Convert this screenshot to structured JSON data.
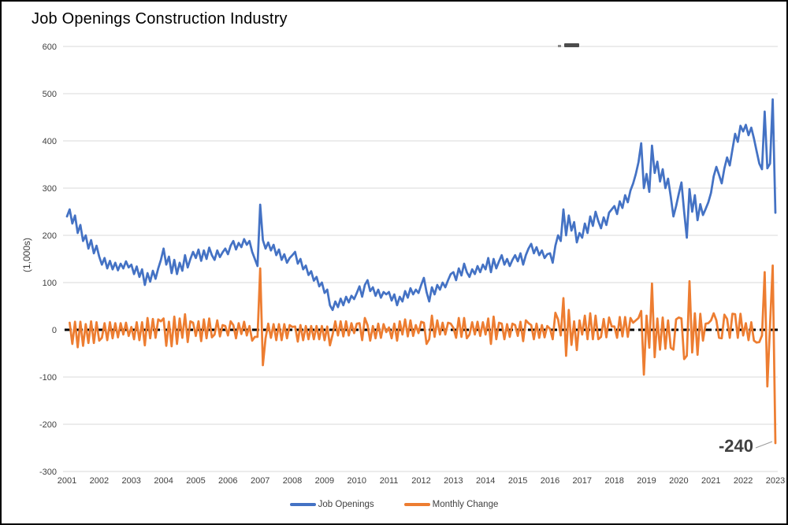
{
  "chart_data": {
    "type": "line",
    "title": "Job Openings Construction Industry",
    "ylabel": "(1,000s)",
    "xlabel": "",
    "ylim": [
      -300,
      600
    ],
    "y_ticks": [
      600,
      500,
      400,
      300,
      200,
      100,
      0,
      -100,
      -200,
      -300
    ],
    "x_tick_labels": [
      "2001",
      "2002",
      "2003",
      "2004",
      "2005",
      "2006",
      "2007",
      "2008",
      "2009",
      "2010",
      "2011",
      "2012",
      "2013",
      "2014",
      "2015",
      "2016",
      "2017",
      "2018",
      "2019",
      "2020",
      "2021",
      "2022",
      "2023"
    ],
    "x_frequency": "monthly",
    "x_range": "Jan 2001 - Jan 2023",
    "grid": "horizontal",
    "legend_position": "bottom center",
    "zero_line": {
      "value": 0,
      "color": "#000000",
      "style": "dashed"
    },
    "annotation": {
      "text": "-240",
      "target": "last Monthly Change point"
    },
    "series": [
      {
        "name": "Job Openings",
        "color": "#4472C4",
        "start_index": 0,
        "values": [
          240,
          255,
          225,
          242,
          205,
          222,
          188,
          200,
          172,
          190,
          162,
          178,
          155,
          138,
          152,
          130,
          146,
          128,
          142,
          126,
          140,
          130,
          145,
          132,
          138,
          118,
          134,
          112,
          128,
          95,
          120,
          102,
          125,
          108,
          130,
          148,
          172,
          138,
          155,
          120,
          148,
          118,
          142,
          125,
          158,
          132,
          150,
          165,
          152,
          170,
          146,
          168,
          150,
          174,
          158,
          148,
          168,
          154,
          164,
          172,
          160,
          178,
          188,
          170,
          184,
          175,
          192,
          180,
          188,
          165,
          150,
          135,
          265,
          190,
          172,
          185,
          168,
          180,
          158,
          170,
          148,
          160,
          142,
          152,
          158,
          165,
          140,
          150,
          128,
          136,
          116,
          124,
          104,
          112,
          92,
          100,
          78,
          85,
          52,
          42,
          60,
          48,
          66,
          52,
          70,
          58,
          72,
          65,
          78,
          92,
          70,
          95,
          105,
          82,
          90,
          72,
          85,
          68,
          80,
          75,
          80,
          62,
          75,
          52,
          70,
          60,
          82,
          68,
          88,
          75,
          85,
          78,
          95,
          110,
          80,
          60,
          90,
          75,
          95,
          85,
          100,
          90,
          105,
          118,
          122,
          105,
          130,
          115,
          140,
          122,
          112,
          128,
          118,
          135,
          122,
          138,
          128,
          152,
          122,
          150,
          130,
          145,
          158,
          138,
          150,
          135,
          148,
          158,
          145,
          162,
          138,
          158,
          172,
          182,
          162,
          175,
          158,
          168,
          152,
          160,
          162,
          142,
          178,
          200,
          188,
          255,
          200,
          242,
          210,
          228,
          185,
          205,
          195,
          225,
          205,
          240,
          220,
          250,
          230,
          215,
          238,
          222,
          248,
          255,
          262,
          245,
          272,
          258,
          285,
          270,
          295,
          310,
          330,
          355,
          395,
          300,
          330,
          292,
          390,
          332,
          356,
          314,
          340,
          300,
          320,
          282,
          240,
          262,
          288,
          312,
          250,
          195,
          298,
          250,
          285,
          232,
          266,
          243,
          256,
          270,
          290,
          325,
          345,
          328,
          310,
          342,
          365,
          348,
          382,
          415,
          398,
          432,
          420,
          434,
          412,
          428,
          405,
          378,
          352,
          340,
          462,
          342,
          352,
          488,
          248
        ]
      },
      {
        "name": "Monthly Change",
        "color": "#ED7D31",
        "start_index": 1,
        "values": [
          15,
          -30,
          17,
          -37,
          17,
          -34,
          12,
          -28,
          18,
          -28,
          16,
          -23,
          -17,
          14,
          -22,
          16,
          -18,
          14,
          -16,
          14,
          -10,
          15,
          -13,
          6,
          -20,
          16,
          -22,
          16,
          -33,
          25,
          -18,
          23,
          -17,
          22,
          18,
          24,
          -34,
          17,
          -35,
          28,
          -30,
          24,
          -17,
          33,
          -26,
          18,
          15,
          -13,
          18,
          -24,
          22,
          -18,
          24,
          -16,
          -10,
          20,
          -14,
          10,
          8,
          -12,
          18,
          10,
          -18,
          14,
          -9,
          17,
          -12,
          8,
          -23,
          -15,
          -15,
          130,
          -75,
          -18,
          13,
          -17,
          12,
          -22,
          12,
          -22,
          12,
          -18,
          10,
          6,
          7,
          -25,
          10,
          -22,
          8,
          -20,
          8,
          -20,
          8,
          -20,
          8,
          -22,
          7,
          -33,
          -10,
          18,
          -12,
          18,
          -14,
          18,
          -12,
          14,
          -7,
          13,
          14,
          -22,
          25,
          10,
          -23,
          8,
          -18,
          13,
          -17,
          12,
          -5,
          5,
          -18,
          13,
          -23,
          18,
          -10,
          22,
          -14,
          20,
          -13,
          10,
          -7,
          17,
          15,
          -30,
          -20,
          30,
          -15,
          20,
          -10,
          15,
          -10,
          15,
          13,
          4,
          -17,
          25,
          -15,
          25,
          -18,
          -10,
          16,
          -10,
          17,
          -13,
          16,
          -10,
          24,
          -30,
          28,
          -20,
          15,
          13,
          -20,
          12,
          -15,
          13,
          10,
          -13,
          17,
          -24,
          20,
          14,
          10,
          -20,
          13,
          -17,
          10,
          -16,
          8,
          2,
          -20,
          36,
          22,
          -12,
          67,
          -55,
          42,
          -32,
          18,
          -43,
          20,
          -10,
          30,
          -20,
          35,
          -20,
          30,
          -20,
          -15,
          23,
          -16,
          26,
          7,
          7,
          -17,
          27,
          -14,
          27,
          -15,
          25,
          15,
          20,
          25,
          40,
          -95,
          30,
          -38,
          98,
          -58,
          24,
          -42,
          26,
          -40,
          20,
          -38,
          -42,
          22,
          26,
          24,
          -62,
          -55,
          103,
          -48,
          35,
          -53,
          34,
          -23,
          13,
          14,
          20,
          35,
          20,
          -17,
          -18,
          32,
          23,
          -17,
          34,
          33,
          -17,
          34,
          -12,
          14,
          -22,
          16,
          -23,
          -27,
          -26,
          -12,
          122,
          -120,
          10,
          136,
          -240
        ]
      }
    ]
  }
}
